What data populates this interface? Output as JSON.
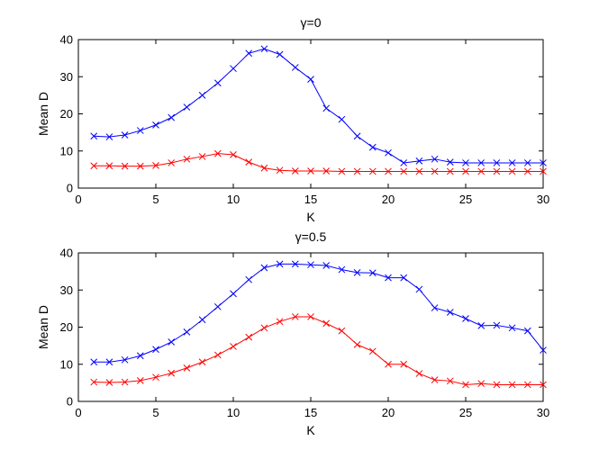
{
  "chart_data": [
    {
      "type": "line",
      "title": "γ=0",
      "xlabel": "K",
      "ylabel": "Mean D",
      "xlim": [
        0,
        30
      ],
      "ylim": [
        0,
        40
      ],
      "xticks": [
        0,
        5,
        10,
        15,
        20,
        25,
        30
      ],
      "yticks": [
        0,
        10,
        20,
        30,
        40
      ],
      "marker": "x",
      "x": [
        1,
        2,
        3,
        4,
        5,
        6,
        7,
        8,
        9,
        10,
        11,
        12,
        13,
        14,
        15,
        16,
        17,
        18,
        19,
        20,
        21,
        22,
        23,
        24,
        25,
        26,
        27,
        28,
        29,
        30
      ],
      "series": [
        {
          "name": "blue",
          "color": "#0000ff",
          "values": [
            14,
            13.8,
            14.3,
            15.5,
            17,
            19,
            21.8,
            25,
            28.3,
            32.2,
            36.3,
            37.5,
            36,
            32.5,
            29.3,
            21.5,
            18.5,
            14,
            11,
            9.5,
            6.8,
            7.3,
            7.8,
            7,
            6.8,
            6.8,
            6.8,
            6.8,
            6.8,
            6.8
          ]
        },
        {
          "name": "red",
          "color": "#ff0000",
          "values": [
            6,
            6,
            5.9,
            5.9,
            6.1,
            6.8,
            7.8,
            8.5,
            9.3,
            9,
            7,
            5.4,
            4.8,
            4.6,
            4.6,
            4.6,
            4.5,
            4.5,
            4.5,
            4.5,
            4.5,
            4.5,
            4.5,
            4.5,
            4.5,
            4.5,
            4.5,
            4.5,
            4.5,
            4.5
          ]
        }
      ]
    },
    {
      "type": "line",
      "title": "γ=0.5",
      "xlabel": "K",
      "ylabel": "Mean D",
      "xlim": [
        0,
        30
      ],
      "ylim": [
        0,
        40
      ],
      "xticks": [
        0,
        5,
        10,
        15,
        20,
        25,
        30
      ],
      "yticks": [
        0,
        10,
        20,
        30,
        40
      ],
      "marker": "x",
      "x": [
        1,
        2,
        3,
        4,
        5,
        6,
        7,
        8,
        9,
        10,
        11,
        12,
        13,
        14,
        15,
        16,
        17,
        18,
        19,
        20,
        21,
        22,
        23,
        24,
        25,
        26,
        27,
        28,
        29,
        30
      ],
      "series": [
        {
          "name": "blue",
          "color": "#0000ff",
          "values": [
            10.6,
            10.6,
            11.2,
            12.3,
            14,
            16,
            18.7,
            22,
            25.5,
            29,
            32.8,
            36,
            37,
            37,
            36.8,
            36.6,
            35.5,
            34.7,
            34.6,
            33.3,
            33.3,
            30.2,
            25.2,
            24,
            22.3,
            20.4,
            20.5,
            19.8,
            19,
            13.8
          ]
        },
        {
          "name": "red",
          "color": "#ff0000",
          "values": [
            5.2,
            5.1,
            5.2,
            5.6,
            6.5,
            7.6,
            9,
            10.6,
            12.5,
            14.8,
            17.3,
            19.8,
            21.5,
            22.8,
            22.8,
            21,
            19,
            15.3,
            13.5,
            10,
            10,
            7.5,
            5.8,
            5.5,
            4.5,
            4.8,
            4.5,
            4.5,
            4.5,
            4.5
          ]
        }
      ]
    }
  ]
}
